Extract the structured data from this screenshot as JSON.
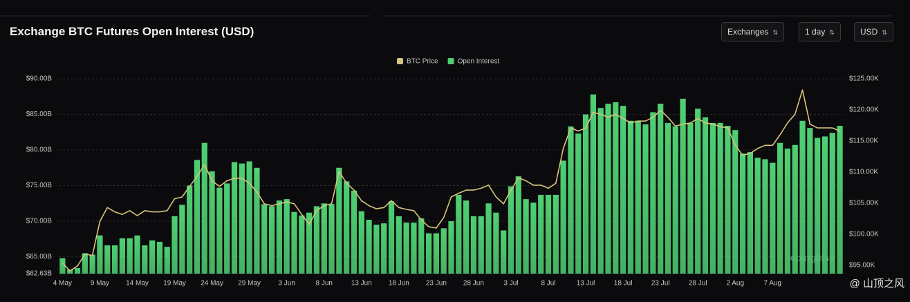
{
  "controls": [
    "Exchanges",
    "1 day",
    "USD"
  ],
  "watermark": "coinglass",
  "credit": "@ 山顶之风",
  "chart_data": {
    "type": "bar",
    "title": "Exchange BTC Futures Open Interest (USD)",
    "categories": [
      "4 May",
      null,
      null,
      null,
      null,
      "9 May",
      null,
      null,
      null,
      null,
      "14 May",
      null,
      null,
      null,
      null,
      "19 May",
      null,
      null,
      null,
      null,
      "24 May",
      null,
      null,
      null,
      null,
      "29 May",
      null,
      null,
      null,
      null,
      "3 Jun",
      null,
      null,
      null,
      null,
      "8 Jun",
      null,
      null,
      null,
      null,
      "13 Jun",
      null,
      null,
      null,
      null,
      "18 Jun",
      null,
      null,
      null,
      null,
      "23 Jun",
      null,
      null,
      null,
      null,
      "28 Jun",
      null,
      null,
      null,
      null,
      "3 Jul",
      null,
      null,
      null,
      null,
      "8 Jul",
      null,
      null,
      null,
      null,
      "13 Jul",
      null,
      null,
      null,
      null,
      "18 Jul",
      null,
      null,
      null,
      null,
      "23 Jul",
      null,
      null,
      null,
      null,
      "28 Jul",
      null,
      null,
      null,
      null,
      "2 Aug",
      null,
      null,
      null,
      null,
      "7 Aug",
      null,
      null,
      null,
      null,
      null,
      null,
      null,
      null,
      null
    ],
    "series": [
      {
        "name": "BTC Price",
        "type": "line",
        "axis": "y2",
        "color": "#d8c47c",
        "values": [
          95.4,
          94.1,
          94.9,
          96.8,
          96.6,
          102.1,
          104.3,
          103.6,
          103.2,
          103.8,
          103.0,
          103.8,
          103.6,
          103.6,
          103.8,
          105.7,
          106.0,
          107.7,
          109.3,
          111.2,
          108.6,
          107.7,
          108.6,
          109.0,
          109.0,
          108.2,
          106.8,
          104.9,
          104.6,
          104.9,
          105.2,
          104.9,
          103.2,
          101.6,
          103.8,
          104.6,
          104.9,
          110.1,
          108.2,
          107.1,
          105.4,
          104.6,
          104.1,
          104.3,
          105.4,
          104.3,
          104.0,
          103.8,
          102.3,
          101.2,
          101.0,
          102.7,
          106.0,
          106.6,
          107.1,
          107.1,
          107.4,
          107.9,
          106.0,
          104.9,
          107.1,
          109.1,
          108.6,
          107.9,
          107.9,
          107.4,
          108.2,
          113.8,
          117.1,
          116.6,
          117.1,
          119.6,
          119.3,
          118.8,
          119.3,
          118.6,
          117.9,
          118.2,
          118.2,
          118.8,
          119.9,
          118.8,
          117.4,
          117.7,
          117.9,
          118.6,
          117.9,
          117.7,
          117.3,
          117.1,
          114.3,
          112.7,
          113.0,
          113.8,
          114.3,
          114.3,
          116.0,
          117.9,
          119.3,
          123.2,
          117.7,
          117.1,
          117.1,
          117.1,
          116.6
        ]
      },
      {
        "name": "Open Interest",
        "type": "bar",
        "color": "#4fcf72",
        "values": [
          64.8,
          63.2,
          63.4,
          65.5,
          65.3,
          68.0,
          66.6,
          66.6,
          67.6,
          67.6,
          68.0,
          66.6,
          67.3,
          67.1,
          66.4,
          70.7,
          72.3,
          75.0,
          78.6,
          81.0,
          77.0,
          74.7,
          75.3,
          78.3,
          78.1,
          78.4,
          77.5,
          72.4,
          72.1,
          72.9,
          73.1,
          71.3,
          70.8,
          71.2,
          72.1,
          72.5,
          72.4,
          77.5,
          75.6,
          74.3,
          71.4,
          70.2,
          69.5,
          69.7,
          72.8,
          70.7,
          69.8,
          69.8,
          70.4,
          68.3,
          68.3,
          69.0,
          70.0,
          73.7,
          72.9,
          70.7,
          70.7,
          72.5,
          71.2,
          68.7,
          74.9,
          76.3,
          73.1,
          72.6,
          73.7,
          73.7,
          73.7,
          78.5,
          83.3,
          82.3,
          85.0,
          87.8,
          85.9,
          86.5,
          86.7,
          86.2,
          84.1,
          84.1,
          83.6,
          85.3,
          86.5,
          83.8,
          83.3,
          87.2,
          83.8,
          85.8,
          84.6,
          83.8,
          83.8,
          83.4,
          82.8,
          79.5,
          79.7,
          78.9,
          78.7,
          78.2,
          81.0,
          80.2,
          80.7,
          84.1,
          83.1,
          81.7,
          81.9,
          82.4,
          83.4
        ]
      }
    ],
    "ylim": [
      62.63,
      90
    ],
    "yticks": [
      {
        "value": 62.63,
        "label": "$62.63B"
      },
      {
        "value": 65,
        "label": "$65.00B"
      },
      {
        "value": 70,
        "label": "$70.00B"
      },
      {
        "value": 75,
        "label": "$75.00B"
      },
      {
        "value": 80,
        "label": "$80.00B"
      },
      {
        "value": 85,
        "label": "$85.00B"
      },
      {
        "value": 90,
        "label": "$90.00B"
      }
    ],
    "y2lim": [
      93.67,
      125
    ],
    "y2ticks": [
      {
        "value": 95,
        "label": "$95.00K"
      },
      {
        "value": 100,
        "label": "$100.00K"
      },
      {
        "value": 105,
        "label": "$105.00K"
      },
      {
        "value": 110,
        "label": "$110.00K"
      },
      {
        "value": 115,
        "label": "$115.00K"
      },
      {
        "value": 120,
        "label": "$120.00K"
      },
      {
        "value": 125,
        "label": "$125.00K"
      }
    ],
    "grid": true,
    "legend": "top"
  }
}
